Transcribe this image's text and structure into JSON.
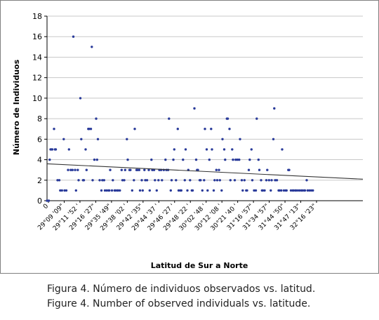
{
  "chart_data": {
    "type": "scatter",
    "title": "",
    "xlabel": "Latitud de Sur a Norte",
    "ylabel": "Número de Individuos",
    "ylim": [
      0,
      18
    ],
    "yticks": [
      0,
      2,
      4,
      6,
      8,
      10,
      12,
      14,
      16,
      18
    ],
    "x_tick_labels": [
      "0",
      "29°09 '09\"",
      "29°11 '52 '",
      "29°16 '27\"",
      "29°35 '49\"",
      "29°38 '02 '",
      "29°42 '35\"",
      "29°44 '37 '",
      "29°46 '27 '",
      "29°48 '22 '",
      "30°02 '48 '",
      "30°12 '08 '",
      "30°21 '40 '",
      "31°16 '57\"",
      "31°34 '57\"",
      "31°44 '50\"",
      "31°47 '13\"",
      "32°16 '23\""
    ],
    "grid": true,
    "legend": "none",
    "point_color": "#2a3b9a",
    "trendline": {
      "type": "linear",
      "y_start": 3.6,
      "y_end": 2.1,
      "color": "#333333"
    },
    "x_range": [
      0,
      360
    ],
    "series": [
      {
        "points": [
          [
            0,
            0
          ],
          [
            2,
            0
          ],
          [
            3,
            4
          ],
          [
            4,
            5
          ],
          [
            5,
            5
          ],
          [
            6,
            5
          ],
          [
            8,
            7
          ],
          [
            9,
            5
          ],
          [
            10,
            5
          ],
          [
            12,
            2
          ],
          [
            14,
            2
          ],
          [
            15,
            1
          ],
          [
            17,
            1
          ],
          [
            19,
            6
          ],
          [
            20,
            1
          ],
          [
            22,
            1
          ],
          [
            24,
            3
          ],
          [
            25,
            5
          ],
          [
            27,
            3
          ],
          [
            29,
            3
          ],
          [
            30,
            16
          ],
          [
            32,
            3
          ],
          [
            33,
            1
          ],
          [
            35,
            3
          ],
          [
            36,
            2
          ],
          [
            38,
            10
          ],
          [
            39,
            6
          ],
          [
            41,
            2
          ],
          [
            42,
            2
          ],
          [
            44,
            5
          ],
          [
            45,
            3
          ],
          [
            47,
            7
          ],
          [
            48,
            7
          ],
          [
            50,
            7
          ],
          [
            51,
            15
          ],
          [
            52,
            2
          ],
          [
            54,
            4
          ],
          [
            56,
            8
          ],
          [
            57,
            4
          ],
          [
            58,
            6
          ],
          [
            60,
            2
          ],
          [
            62,
            1
          ],
          [
            63,
            2
          ],
          [
            65,
            2
          ],
          [
            66,
            1
          ],
          [
            68,
            1
          ],
          [
            70,
            1
          ],
          [
            71,
            1
          ],
          [
            72,
            3
          ],
          [
            74,
            1
          ],
          [
            75,
            2
          ],
          [
            77,
            1
          ],
          [
            78,
            1
          ],
          [
            80,
            1
          ],
          [
            81,
            1
          ],
          [
            83,
            1
          ],
          [
            85,
            3
          ],
          [
            86,
            2
          ],
          [
            88,
            2
          ],
          [
            89,
            3
          ],
          [
            91,
            6
          ],
          [
            92,
            4
          ],
          [
            94,
            3
          ],
          [
            95,
            3
          ],
          [
            97,
            1
          ],
          [
            99,
            2
          ],
          [
            100,
            7
          ],
          [
            102,
            3
          ],
          [
            103,
            3
          ],
          [
            105,
            3
          ],
          [
            106,
            1
          ],
          [
            108,
            2
          ],
          [
            109,
            1
          ],
          [
            111,
            3
          ],
          [
            112,
            2
          ],
          [
            114,
            2
          ],
          [
            116,
            3
          ],
          [
            117,
            1
          ],
          [
            119,
            4
          ],
          [
            120,
            3
          ],
          [
            122,
            3
          ],
          [
            123,
            2
          ],
          [
            125,
            1
          ],
          [
            127,
            2
          ],
          [
            128,
            3
          ],
          [
            130,
            3
          ],
          [
            131,
            2
          ],
          [
            133,
            3
          ],
          [
            135,
            4
          ],
          [
            136,
            3
          ],
          [
            138,
            3
          ],
          [
            139,
            8
          ],
          [
            141,
            1
          ],
          [
            142,
            2
          ],
          [
            144,
            4
          ],
          [
            145,
            5
          ],
          [
            147,
            2
          ],
          [
            149,
            7
          ],
          [
            150,
            1
          ],
          [
            152,
            1
          ],
          [
            153,
            1
          ],
          [
            155,
            4
          ],
          [
            157,
            2
          ],
          [
            158,
            5
          ],
          [
            160,
            1
          ],
          [
            161,
            3
          ],
          [
            163,
            2
          ],
          [
            165,
            1
          ],
          [
            166,
            1
          ],
          [
            168,
            9
          ],
          [
            170,
            4
          ],
          [
            171,
            3
          ],
          [
            172,
            3
          ],
          [
            174,
            2
          ],
          [
            175,
            2
          ],
          [
            177,
            1
          ],
          [
            179,
            2
          ],
          [
            180,
            7
          ],
          [
            182,
            5
          ],
          [
            183,
            1
          ],
          [
            185,
            4
          ],
          [
            187,
            7
          ],
          [
            188,
            5
          ],
          [
            190,
            1
          ],
          [
            191,
            2
          ],
          [
            193,
            3
          ],
          [
            194,
            2
          ],
          [
            196,
            3
          ],
          [
            197,
            2
          ],
          [
            199,
            1
          ],
          [
            200,
            6
          ],
          [
            202,
            5
          ],
          [
            203,
            4
          ],
          [
            205,
            8
          ],
          [
            206,
            8
          ],
          [
            208,
            7
          ],
          [
            209,
            2
          ],
          [
            211,
            5
          ],
          [
            212,
            4
          ],
          [
            214,
            2
          ],
          [
            215,
            4
          ],
          [
            217,
            4
          ],
          [
            219,
            4
          ],
          [
            220,
            6
          ],
          [
            222,
            2
          ],
          [
            223,
            1
          ],
          [
            225,
            2
          ],
          [
            227,
            1
          ],
          [
            228,
            1
          ],
          [
            230,
            3
          ],
          [
            231,
            4
          ],
          [
            233,
            5
          ],
          [
            234,
            2
          ],
          [
            236,
            1
          ],
          [
            238,
            1
          ],
          [
            239,
            8
          ],
          [
            241,
            4
          ],
          [
            242,
            3
          ],
          [
            244,
            2
          ],
          [
            245,
            1
          ],
          [
            246,
            1
          ],
          [
            248,
            1
          ],
          [
            250,
            2
          ],
          [
            251,
            3
          ],
          [
            253,
            2
          ],
          [
            255,
            1
          ],
          [
            256,
            2
          ],
          [
            258,
            6
          ],
          [
            259,
            9
          ],
          [
            260,
            2
          ],
          [
            262,
            2
          ],
          [
            264,
            1
          ],
          [
            265,
            1
          ],
          [
            267,
            1
          ],
          [
            268,
            5
          ],
          [
            270,
            1
          ],
          [
            272,
            1
          ],
          [
            273,
            1
          ],
          [
            275,
            3
          ],
          [
            276,
            3
          ],
          [
            278,
            1
          ],
          [
            280,
            1
          ],
          [
            281,
            1
          ],
          [
            283,
            1
          ],
          [
            284,
            1
          ],
          [
            286,
            1
          ],
          [
            288,
            1
          ],
          [
            290,
            1
          ],
          [
            291,
            1
          ],
          [
            293,
            1
          ],
          [
            294,
            1
          ],
          [
            296,
            2
          ],
          [
            297,
            1
          ],
          [
            299,
            1
          ],
          [
            301,
            1
          ],
          [
            303,
            1
          ]
        ]
      }
    ]
  },
  "caption": {
    "spanish": "Figura 4. Número de individuos observados vs. latitud.",
    "english": "Figure 4. Number of observed individuals vs. latitude."
  }
}
